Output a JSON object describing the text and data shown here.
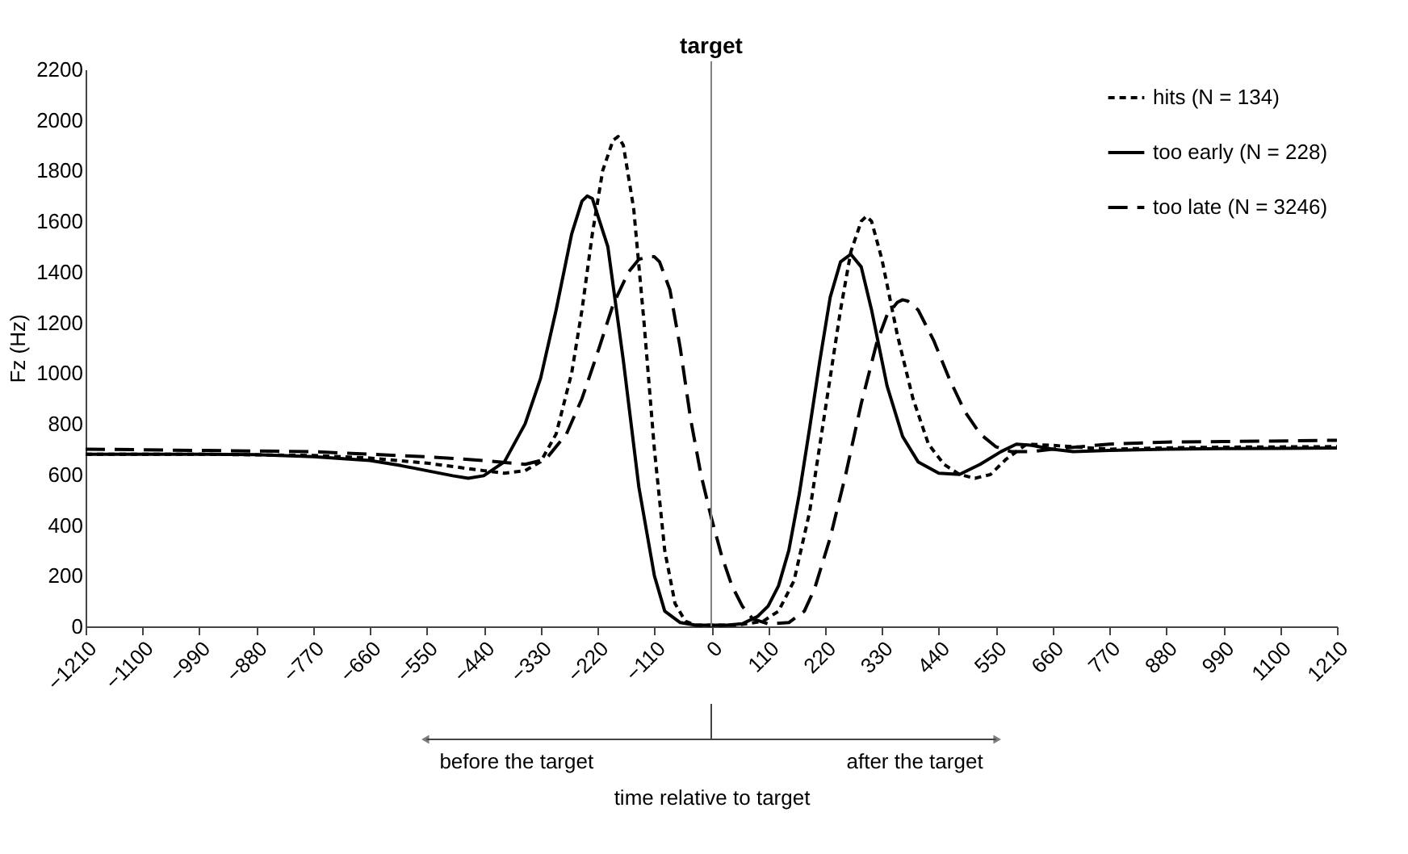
{
  "chart_data": {
    "type": "line",
    "xlabel": "time relative to target",
    "ylabel": "Fz (Hz)",
    "xlim": [
      -1210,
      1210
    ],
    "xticks": [
      -1210,
      -1100,
      -990,
      -880,
      -770,
      -660,
      -550,
      -440,
      -330,
      -220,
      -110,
      0,
      110,
      220,
      330,
      440,
      550,
      660,
      770,
      880,
      990,
      1100,
      1210
    ],
    "ylim": [
      0,
      2200
    ],
    "yticks": [
      0,
      200,
      400,
      600,
      800,
      1000,
      1200,
      1400,
      1600,
      1800,
      2000,
      2200
    ],
    "grid": false,
    "legend": "top right",
    "marker": "none",
    "ref_lines": [
      {
        "axis": "x",
        "value": 0,
        "label": "target",
        "color": "#808080"
      }
    ],
    "annotations": [
      "before the target",
      "after the target"
    ],
    "series": [
      {
        "name": "hits (N = 134)",
        "color": "#000000",
        "line_style": "dotted",
        "x": [
          -1210,
          -990,
          -770,
          -660,
          -550,
          -440,
          -400,
          -360,
          -330,
          -300,
          -270,
          -250,
          -230,
          -210,
          -190,
          -180,
          -170,
          -150,
          -130,
          -110,
          -90,
          -70,
          -50,
          -30,
          0,
          50,
          100,
          130,
          160,
          190,
          220,
          250,
          270,
          290,
          300,
          310,
          330,
          360,
          390,
          420,
          450,
          480,
          510,
          540,
          570,
          610,
          660,
          770,
          880,
          990,
          1210
        ],
        "values": [
          680,
          680,
          675,
          665,
          645,
          615,
          605,
          615,
          650,
          760,
          1000,
          1250,
          1550,
          1800,
          1920,
          1935,
          1900,
          1650,
          1200,
          700,
          300,
          90,
          20,
          5,
          5,
          5,
          20,
          60,
          180,
          450,
          850,
          1250,
          1480,
          1600,
          1620,
          1600,
          1450,
          1150,
          900,
          720,
          640,
          600,
          585,
          600,
          660,
          720,
          715,
          700,
          705,
          708,
          710
        ]
      },
      {
        "name": "too early (N = 228)",
        "color": "#000000",
        "line_style": "solid",
        "x": [
          -1210,
          -1100,
          -990,
          -880,
          -770,
          -660,
          -600,
          -550,
          -500,
          -470,
          -440,
          -400,
          -360,
          -330,
          -300,
          -270,
          -250,
          -240,
          -230,
          -200,
          -170,
          -140,
          -110,
          -90,
          -60,
          -30,
          0,
          30,
          60,
          90,
          110,
          130,
          150,
          170,
          190,
          210,
          230,
          250,
          270,
          290,
          310,
          340,
          370,
          400,
          440,
          480,
          520,
          560,
          590,
          620,
          660,
          700,
          770,
          880,
          990,
          1100,
          1210
        ],
        "values": [
          680,
          680,
          680,
          678,
          670,
          655,
          635,
          615,
          595,
          585,
          595,
          650,
          800,
          980,
          1250,
          1550,
          1680,
          1700,
          1690,
          1500,
          1050,
          550,
          200,
          60,
          15,
          5,
          5,
          5,
          10,
          40,
          80,
          160,
          300,
          520,
          780,
          1050,
          1300,
          1440,
          1470,
          1420,
          1250,
          950,
          750,
          650,
          605,
          600,
          640,
          690,
          720,
          715,
          700,
          690,
          695,
          700,
          702,
          703,
          705
        ]
      },
      {
        "name": "too late (N = 3246)",
        "color": "#000000",
        "line_style": "dashed",
        "x": [
          -1210,
          -990,
          -770,
          -550,
          -440,
          -360,
          -320,
          -280,
          -250,
          -220,
          -190,
          -160,
          -140,
          -120,
          -110,
          -100,
          -80,
          -60,
          -40,
          -20,
          0,
          20,
          40,
          60,
          80,
          110,
          150,
          180,
          200,
          230,
          260,
          290,
          320,
          340,
          360,
          370,
          380,
          400,
          430,
          460,
          490,
          520,
          550,
          580,
          620,
          660,
          770,
          880,
          990,
          1210
        ],
        "values": [
          700,
          695,
          690,
          670,
          655,
          640,
          660,
          760,
          900,
          1080,
          1270,
          1400,
          1450,
          1460,
          1460,
          1440,
          1330,
          1100,
          820,
          600,
          430,
          280,
          160,
          80,
          30,
          10,
          15,
          60,
          150,
          350,
          600,
          880,
          1120,
          1230,
          1280,
          1290,
          1285,
          1250,
          1130,
          980,
          850,
          760,
          710,
          690,
          690,
          700,
          720,
          728,
          730,
          735
        ]
      }
    ]
  }
}
